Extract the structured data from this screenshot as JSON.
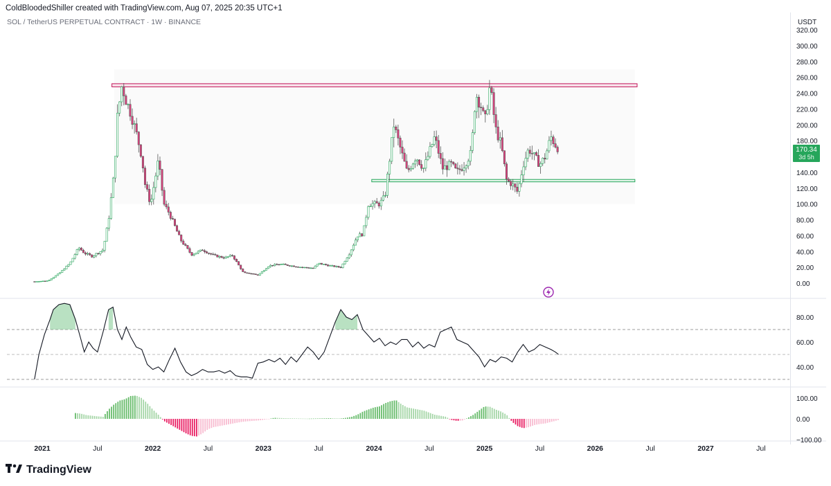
{
  "header": {
    "created_line": "ColdBloodedShiller created with TradingView.com, Aug 07, 2025 20:35 UTC+1",
    "symbol_line": "SOL / TetherUS PERPETUAL CONTRACT · 1W · BINANCE",
    "currency": "USDT"
  },
  "price_tag": {
    "value": "170.34",
    "countdown": "3d 5h",
    "color": "#26a65b"
  },
  "brand": {
    "name": "TradingView",
    "logo_icon": "tradingview-logo-icon"
  },
  "colors": {
    "up": "#26a65b",
    "down": "#e0407f",
    "resistance": "#c2185b",
    "support": "#26a65b",
    "rsi_line": "#131722",
    "rsi_fill": "#1b8f3a"
  },
  "chart_data": [
    {
      "type": "candlestick",
      "title": "",
      "timeframe": "1W",
      "yaxis_ticks": [
        "0.00",
        "20.00",
        "40.00",
        "60.00",
        "80.00",
        "100.00",
        "120.00",
        "140.00",
        "160.00",
        "180.00",
        "200.00",
        "220.00",
        "240.00",
        "260.00",
        "280.00",
        "300.00",
        "320.00"
      ],
      "ylim": [
        -5,
        320
      ],
      "xaxis_ticks": [
        "2021",
        "Jul",
        "2022",
        "Jul",
        "2023",
        "Jul",
        "2024",
        "Jul",
        "2025",
        "Jul",
        "2026",
        "Jul",
        "2027",
        "Jul"
      ],
      "xaxis_bold": [
        "2021",
        "2022",
        "2023",
        "2024",
        "2025",
        "2026",
        "2027"
      ],
      "xlim": [
        2021.0,
        2027.6
      ],
      "last_price": 170.34,
      "horizontal_zones": [
        {
          "name": "resistance",
          "x_start": 2021.63,
          "x_end": 2026.38,
          "y_low": 248,
          "y_high": 252
        },
        {
          "name": "support",
          "x_start": 2023.98,
          "x_end": 2026.36,
          "y_low": 128,
          "y_high": 131
        }
      ],
      "price_path": [
        [
          2020.93,
          2
        ],
        [
          2021.05,
          3
        ],
        [
          2021.15,
          12
        ],
        [
          2021.25,
          25
        ],
        [
          2021.33,
          45
        ],
        [
          2021.38,
          38
        ],
        [
          2021.45,
          34
        ],
        [
          2021.55,
          42
        ],
        [
          2021.6,
          80
        ],
        [
          2021.65,
          140
        ],
        [
          2021.68,
          210
        ],
        [
          2021.72,
          250
        ],
        [
          2021.76,
          230
        ],
        [
          2021.8,
          215
        ],
        [
          2021.85,
          190
        ],
        [
          2021.9,
          160
        ],
        [
          2021.93,
          125
        ],
        [
          2021.98,
          100
        ],
        [
          2022.05,
          155
        ],
        [
          2022.1,
          100
        ],
        [
          2022.15,
          88
        ],
        [
          2022.25,
          55
        ],
        [
          2022.35,
          36
        ],
        [
          2022.45,
          42
        ],
        [
          2022.55,
          35
        ],
        [
          2022.65,
          32
        ],
        [
          2022.72,
          35
        ],
        [
          2022.82,
          13
        ],
        [
          2022.9,
          12
        ],
        [
          2022.95,
          10
        ],
        [
          2023.05,
          22
        ],
        [
          2023.15,
          24
        ],
        [
          2023.25,
          22
        ],
        [
          2023.35,
          20
        ],
        [
          2023.45,
          19
        ],
        [
          2023.5,
          25
        ],
        [
          2023.6,
          22
        ],
        [
          2023.7,
          20
        ],
        [
          2023.78,
          38
        ],
        [
          2023.85,
          60
        ],
        [
          2023.9,
          62
        ],
        [
          2023.95,
          100
        ],
        [
          2024.05,
          100
        ],
        [
          2024.1,
          110
        ],
        [
          2024.18,
          200
        ],
        [
          2024.25,
          165
        ],
        [
          2024.3,
          140
        ],
        [
          2024.38,
          160
        ],
        [
          2024.45,
          145
        ],
        [
          2024.55,
          185
        ],
        [
          2024.62,
          145
        ],
        [
          2024.7,
          150
        ],
        [
          2024.75,
          140
        ],
        [
          2024.82,
          150
        ],
        [
          2024.88,
          165
        ],
        [
          2024.92,
          240
        ],
        [
          2024.95,
          230
        ],
        [
          2024.98,
          220
        ],
        [
          2025.0,
          200
        ],
        [
          2025.05,
          250
        ],
        [
          2025.1,
          195
        ],
        [
          2025.15,
          175
        ],
        [
          2025.2,
          130
        ],
        [
          2025.25,
          125
        ],
        [
          2025.3,
          115
        ],
        [
          2025.35,
          150
        ],
        [
          2025.4,
          170
        ],
        [
          2025.45,
          160
        ],
        [
          2025.5,
          150
        ],
        [
          2025.55,
          160
        ],
        [
          2025.6,
          185
        ],
        [
          2025.64,
          175
        ],
        [
          2025.67,
          170
        ]
      ]
    },
    {
      "type": "line",
      "title": "",
      "indicator": "RSI",
      "yaxis_ticks": [
        "40.00",
        "60.00",
        "80.00"
      ],
      "ylim": [
        28,
        92
      ],
      "bands": [
        70,
        50,
        30
      ],
      "xlim": [
        2021.0,
        2027.6
      ],
      "series": [
        {
          "x": [
            2020.93,
            2020.97,
            2021.02,
            2021.07,
            2021.1,
            2021.15,
            2021.2,
            2021.25,
            2021.3,
            2021.35,
            2021.38,
            2021.42,
            2021.46,
            2021.5,
            2021.55,
            2021.6,
            2021.64,
            2021.68,
            2021.72,
            2021.76,
            2021.8,
            2021.85,
            2021.9,
            2021.95,
            2022.0,
            2022.05,
            2022.1,
            2022.15,
            2022.2,
            2022.25,
            2022.3,
            2022.35,
            2022.4,
            2022.45,
            2022.5,
            2022.55,
            2022.6,
            2022.65,
            2022.7,
            2022.75,
            2022.8,
            2022.85,
            2022.9,
            2022.95,
            2023.0,
            2023.05,
            2023.1,
            2023.15,
            2023.2,
            2023.25,
            2023.3,
            2023.35,
            2023.4,
            2023.45,
            2023.5,
            2023.55,
            2023.6,
            2023.65,
            2023.7,
            2023.75,
            2023.8,
            2023.85,
            2023.9,
            2023.95,
            2024.0,
            2024.05,
            2024.1,
            2024.15,
            2024.2,
            2024.25,
            2024.3,
            2024.35,
            2024.4,
            2024.45,
            2024.5,
            2024.55,
            2024.6,
            2024.65,
            2024.7,
            2024.75,
            2024.8,
            2024.85,
            2024.9,
            2024.95,
            2025.0,
            2025.05,
            2025.1,
            2025.15,
            2025.2,
            2025.25,
            2025.3,
            2025.35,
            2025.4,
            2025.45,
            2025.5,
            2025.55,
            2025.6,
            2025.64,
            2025.67
          ],
          "values": [
            30,
            50,
            66,
            78,
            86,
            90,
            91,
            90,
            78,
            62,
            52,
            60,
            55,
            52,
            68,
            86,
            88,
            70,
            62,
            72,
            64,
            56,
            54,
            42,
            38,
            40,
            36,
            46,
            55,
            44,
            36,
            33,
            35,
            38,
            36,
            36,
            37,
            35,
            37,
            33,
            32,
            32,
            31,
            43,
            44,
            46,
            44,
            47,
            42,
            48,
            44,
            50,
            56,
            52,
            46,
            52,
            64,
            76,
            86,
            80,
            78,
            82,
            70,
            65,
            60,
            63,
            57,
            60,
            58,
            62,
            62,
            56,
            60,
            55,
            58,
            56,
            68,
            70,
            72,
            62,
            60,
            58,
            53,
            48,
            40,
            46,
            44,
            48,
            47,
            44,
            52,
            58,
            52,
            54,
            58,
            56,
            54,
            52,
            50
          ]
        }
      ]
    },
    {
      "type": "bar",
      "title": "",
      "indicator": "MACD histogram",
      "yaxis_ticks": [
        "−100.00",
        "0.00",
        "100.00"
      ],
      "ylim": [
        -110,
        120
      ],
      "xlim": [
        2021.0,
        2027.6
      ],
      "series": [
        {
          "x": [
            2021.3,
            2021.35,
            2021.4,
            2021.45,
            2021.5,
            2021.55,
            2021.6,
            2021.65,
            2021.7,
            2021.75,
            2021.8,
            2021.85,
            2021.9,
            2021.95,
            2022.0,
            2022.05,
            2022.1,
            2022.15,
            2022.2,
            2022.25,
            2022.3,
            2022.35,
            2022.4,
            2022.45,
            2022.5,
            2022.55,
            2022.6,
            2022.65,
            2022.7,
            2022.75,
            2022.8,
            2022.85,
            2022.9,
            2022.95,
            2023.0,
            2023.1,
            2023.2,
            2023.3,
            2023.4,
            2023.5,
            2023.6,
            2023.7,
            2023.75,
            2023.8,
            2023.85,
            2023.9,
            2023.95,
            2024.0,
            2024.05,
            2024.1,
            2024.15,
            2024.2,
            2024.25,
            2024.3,
            2024.35,
            2024.4,
            2024.45,
            2024.5,
            2024.55,
            2024.6,
            2024.65,
            2024.7,
            2024.75,
            2024.8,
            2024.85,
            2024.9,
            2024.95,
            2025.0,
            2025.05,
            2025.1,
            2025.15,
            2025.2,
            2025.25,
            2025.3,
            2025.35,
            2025.4,
            2025.45,
            2025.5,
            2025.55,
            2025.6,
            2025.64,
            2025.67
          ],
          "values": [
            28,
            25,
            18,
            15,
            12,
            10,
            45,
            70,
            88,
            95,
            110,
            112,
            100,
            75,
            45,
            20,
            -10,
            -25,
            -40,
            -55,
            -70,
            -82,
            -85,
            -70,
            -50,
            -40,
            -35,
            -30,
            -25,
            -20,
            -15,
            -12,
            -10,
            -8,
            -5,
            5,
            3,
            2,
            1,
            2,
            3,
            2,
            5,
            10,
            20,
            35,
            45,
            55,
            60,
            75,
            85,
            90,
            70,
            55,
            50,
            45,
            40,
            30,
            20,
            15,
            10,
            -5,
            -10,
            -8,
            5,
            20,
            40,
            60,
            58,
            45,
            35,
            20,
            -15,
            -35,
            -45,
            -40,
            -30,
            -25,
            -22,
            -15,
            -10,
            -5
          ]
        }
      ]
    }
  ]
}
